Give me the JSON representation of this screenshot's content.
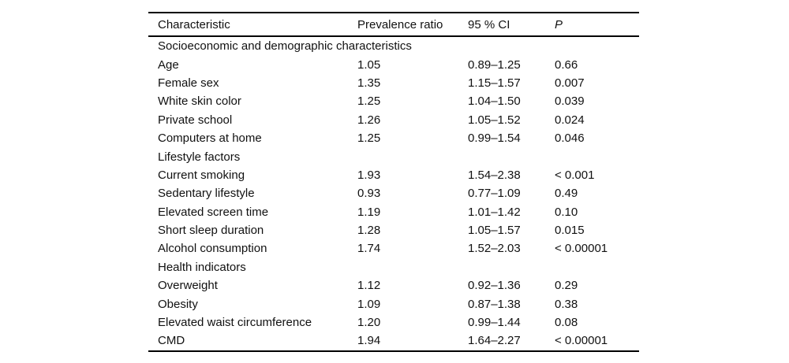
{
  "table": {
    "columns": {
      "characteristic": "Characteristic",
      "prevalence_ratio": "Prevalence ratio",
      "ci": "95 % CI",
      "p": "P"
    },
    "rows": [
      {
        "type": "section",
        "characteristic": "Socioeconomic and demographic characteristics",
        "pr": "",
        "ci": "",
        "p": ""
      },
      {
        "type": "data",
        "characteristic": "Age",
        "pr": "1.05",
        "ci": "0.89–1.25",
        "p": "0.66"
      },
      {
        "type": "data",
        "characteristic": "Female sex",
        "pr": "1.35",
        "ci": "1.15–1.57",
        "p": "0.007"
      },
      {
        "type": "data",
        "characteristic": "White skin color",
        "pr": "1.25",
        "ci": "1.04–1.50",
        "p": "0.039"
      },
      {
        "type": "data",
        "characteristic": "Private school",
        "pr": "1.26",
        "ci": "1.05–1.52",
        "p": "0.024"
      },
      {
        "type": "data",
        "characteristic": "Computers at home",
        "pr": "1.25",
        "ci": "0.99–1.54",
        "p": "0.046"
      },
      {
        "type": "section",
        "characteristic": "Lifestyle factors",
        "pr": "",
        "ci": "",
        "p": ""
      },
      {
        "type": "data",
        "characteristic": "Current smoking",
        "pr": "1.93",
        "ci": "1.54–2.38",
        "p": "< 0.001"
      },
      {
        "type": "data",
        "characteristic": "Sedentary lifestyle",
        "pr": "0.93",
        "ci": "0.77–1.09",
        "p": "0.49"
      },
      {
        "type": "data",
        "characteristic": "Elevated screen time",
        "pr": "1.19",
        "ci": "1.01–1.42",
        "p": "0.10"
      },
      {
        "type": "data",
        "characteristic": "Short sleep duration",
        "pr": "1.28",
        "ci": "1.05–1.57",
        "p": "0.015"
      },
      {
        "type": "data",
        "characteristic": "Alcohol consumption",
        "pr": "1.74",
        "ci": "1.52–2.03",
        "p": "< 0.00001"
      },
      {
        "type": "section",
        "characteristic": "Health indicators",
        "pr": "",
        "ci": "",
        "p": ""
      },
      {
        "type": "data",
        "characteristic": "Overweight",
        "pr": "1.12",
        "ci": "0.92–1.36",
        "p": "0.29"
      },
      {
        "type": "data",
        "characteristic": "Obesity",
        "pr": "1.09",
        "ci": "0.87–1.38",
        "p": "0.38"
      },
      {
        "type": "data",
        "characteristic": "Elevated waist circumference",
        "pr": "1.20",
        "ci": "0.99–1.44",
        "p": "0.08"
      },
      {
        "type": "data",
        "characteristic": "CMD",
        "pr": "1.94",
        "ci": "1.64–2.27",
        "p": "< 0.00001"
      }
    ]
  }
}
